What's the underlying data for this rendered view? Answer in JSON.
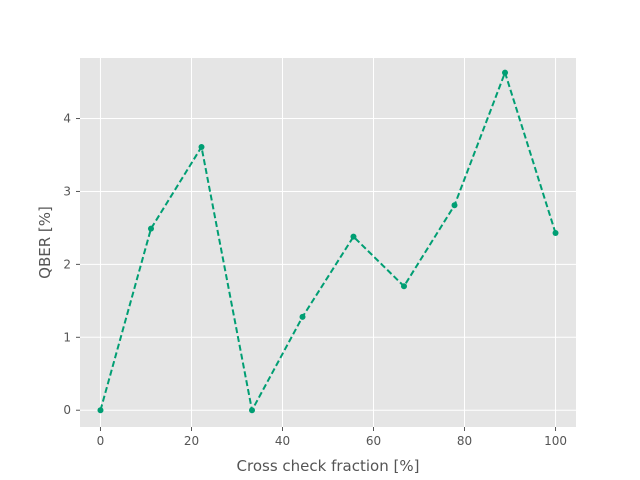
{
  "chart_data": {
    "type": "line",
    "title": "",
    "xlabel": "Cross check fraction [%]",
    "ylabel": "QBER [%]",
    "xlim": [
      -4.5,
      104.5
    ],
    "ylim": [
      -0.23,
      4.83
    ],
    "xticks": [
      0,
      20,
      40,
      60,
      80,
      100
    ],
    "yticks": [
      0,
      1,
      2,
      3,
      4
    ],
    "xtick_labels": [
      "0",
      "20",
      "40",
      "60",
      "80",
      "100"
    ],
    "ytick_labels": [
      "0",
      "1",
      "2",
      "3",
      "4"
    ],
    "grid": true,
    "series": [
      {
        "color": "#009e73",
        "line_style": "dashed",
        "marker": "circle",
        "x": [
          0,
          11.1,
          22.2,
          33.3,
          44.4,
          55.6,
          66.7,
          77.8,
          88.9,
          100
        ],
        "y": [
          0,
          2.49,
          3.61,
          0,
          1.28,
          2.38,
          1.7,
          2.81,
          4.63,
          2.43
        ]
      }
    ]
  },
  "style": {
    "plot_background": "#e5e5e5",
    "grid_color": "#ffffff",
    "text_color": "#555555"
  }
}
